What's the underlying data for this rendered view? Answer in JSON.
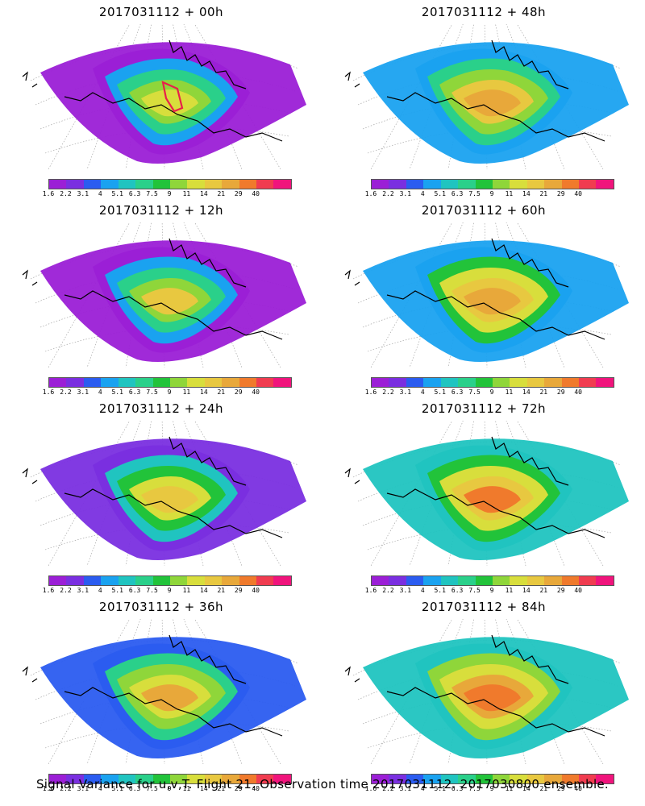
{
  "panels": [
    {
      "title": "2017031112 + 00h",
      "stage": 0
    },
    {
      "title": "2017031112 + 48h",
      "stage": 4
    },
    {
      "title": "2017031112 + 12h",
      "stage": 1
    },
    {
      "title": "2017031112 + 60h",
      "stage": 5
    },
    {
      "title": "2017031112 + 24h",
      "stage": 2
    },
    {
      "title": "2017031112 + 72h",
      "stage": 6
    },
    {
      "title": "2017031112 + 36h",
      "stage": 3
    },
    {
      "title": "2017031112 + 84h",
      "stage": 7
    }
  ],
  "colorbar": {
    "colors": [
      "#9b1fd6",
      "#7a2fe0",
      "#2b5cf0",
      "#1aa2f0",
      "#20c4c0",
      "#2ad08a",
      "#22c33a",
      "#8fd63a",
      "#d8de3c",
      "#e8c840",
      "#e8a83a",
      "#f07a2c",
      "#f03c50",
      "#f0147c"
    ],
    "tick_labels": [
      "1.6",
      "2.2",
      "3.1",
      "4",
      "5.1",
      "6.3",
      "7.5",
      "9",
      "11",
      "14",
      "21",
      "29",
      "40"
    ]
  },
  "colors": {
    "coastline": "#000000",
    "graticule": "#9a9a9a",
    "highlight_contour": "#e8204a"
  },
  "footer": "Signal Variance for u,v,T. Flight 21. Observation time 2017031112. 2017030800 ensemble."
}
